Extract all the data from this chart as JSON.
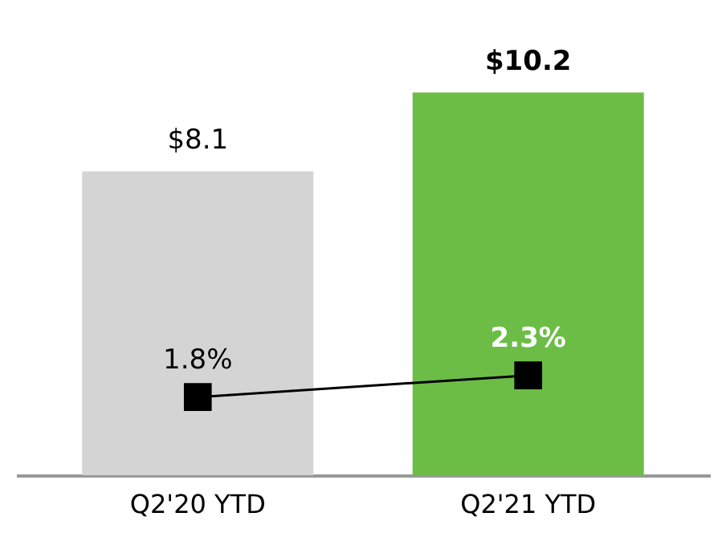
{
  "chart_data": {
    "type": "bar",
    "categories": [
      "Q2'20 YTD",
      "Q2'21 YTD"
    ],
    "series": [
      {
        "colors": [
          "#d4d4d4",
          "#6cbd45"
        ],
        "values": [
          8.1,
          10.2
        ],
        "value_labels": [
          "$8.1",
          "$10.2"
        ]
      },
      {
        "type": "line",
        "axis": "y2",
        "color": "#000000",
        "marker": "square",
        "line_style": "solid",
        "values": [
          1.8,
          2.3
        ],
        "value_labels": [
          "1.8%",
          "2.3%"
        ]
      }
    ]
  }
}
